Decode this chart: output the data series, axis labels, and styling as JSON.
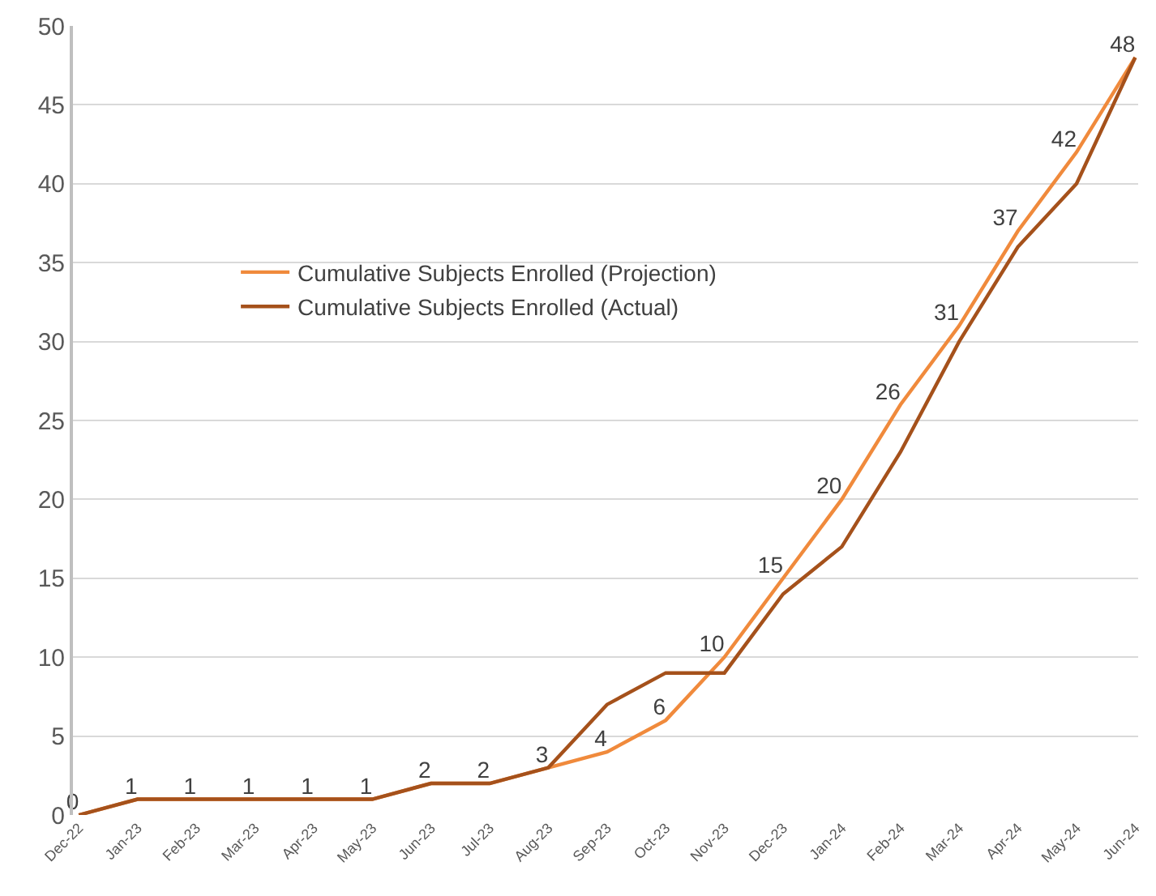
{
  "chart_data": {
    "type": "line",
    "categories": [
      "Dec-22",
      "Jan-23",
      "Feb-23",
      "Mar-23",
      "Apr-23",
      "May-23",
      "Jun-23",
      "Jul-23",
      "Aug-23",
      "Sep-23",
      "Oct-23",
      "Nov-23",
      "Dec-23",
      "Jan-24",
      "Feb-24",
      "Mar-24",
      "Apr-24",
      "May-24",
      "Jun-24"
    ],
    "series": [
      {
        "name": "Cumulative Subjects Enrolled (Projection)",
        "color": "#f08a3c",
        "values": [
          0,
          1,
          1,
          1,
          1,
          1,
          2,
          2,
          3,
          4,
          6,
          10,
          15,
          20,
          26,
          31,
          37,
          42,
          48
        ],
        "value_labels": [
          "0",
          "1",
          "1",
          "1",
          "1",
          "1",
          "2",
          "2",
          "3",
          "4",
          "6",
          "10",
          "15",
          "20",
          "26",
          "31",
          "37",
          "42",
          "48"
        ]
      },
      {
        "name": "Cumulative Subjects Enrolled (Actual)",
        "color": "#a5511b",
        "values": [
          0,
          1,
          1,
          1,
          1,
          1,
          2,
          2,
          3,
          7,
          9,
          9,
          14,
          17,
          23,
          30,
          36,
          40,
          48
        ]
      }
    ],
    "ylim": [
      0,
      50
    ],
    "yticks": [
      0,
      5,
      10,
      15,
      20,
      25,
      30,
      35,
      40,
      45,
      50
    ],
    "grid": "y",
    "legend": "top left",
    "marker": "none",
    "line_style": "solid"
  }
}
